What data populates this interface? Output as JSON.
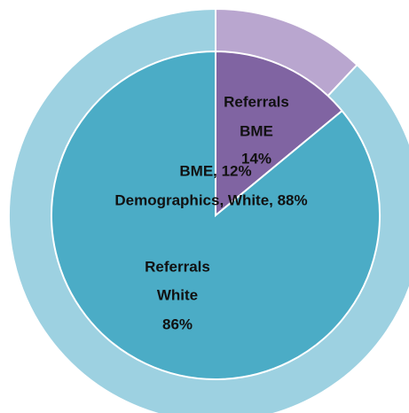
{
  "chart_data": {
    "type": "nested-pie",
    "series": [
      {
        "name": "Demographics",
        "ring": "outer",
        "categories": [
          "BME",
          "White"
        ],
        "values": [
          12,
          88
        ],
        "colors": [
          "#b9a6cf",
          "#9dd1e1"
        ],
        "value_labels": [
          "BME, 12%",
          "Demographics, White, 88%"
        ]
      },
      {
        "name": "Referrals",
        "ring": "inner",
        "categories": [
          "BME",
          "White"
        ],
        "values": [
          14,
          86
        ],
        "colors": [
          "#8064a2",
          "#4bacc6"
        ],
        "value_labels": [
          "14%",
          "86%"
        ]
      }
    ]
  }
}
